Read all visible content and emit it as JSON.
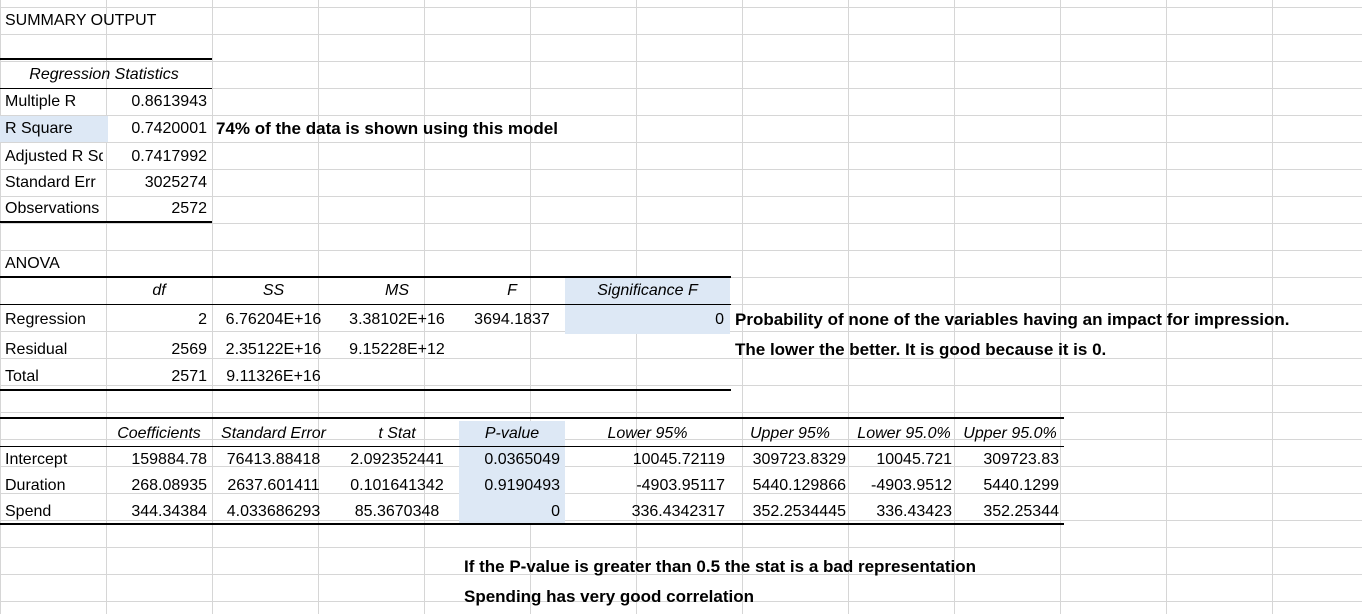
{
  "summary_title": "SUMMARY OUTPUT",
  "regression_statistics": {
    "header": "Regression Statistics",
    "rows": [
      {
        "label": "Multiple R",
        "value": "0.8613943"
      },
      {
        "label": "R Square",
        "value": "0.7420001"
      },
      {
        "label": "Adjusted R Sq",
        "value": "0.7417992"
      },
      {
        "label": "Standard Err",
        "value": "3025274"
      },
      {
        "label": "Observations",
        "value": "2572"
      }
    ],
    "r_square_note": "74% of the data is shown using this model"
  },
  "anova": {
    "title": "ANOVA",
    "headers": [
      "df",
      "SS",
      "MS",
      "F",
      "Significance F"
    ],
    "rows": [
      {
        "label": "Regression",
        "df": "2",
        "ss": "6.76204E+16",
        "ms": "3.38102E+16",
        "f": "3694.1837",
        "sig_f": "0"
      },
      {
        "label": "Residual",
        "df": "2569",
        "ss": "2.35122E+16",
        "ms": "9.15228E+12",
        "f": "",
        "sig_f": ""
      },
      {
        "label": "Total",
        "df": "2571",
        "ss": "9.11326E+16",
        "ms": "",
        "f": "",
        "sig_f": ""
      }
    ],
    "notes": [
      "Probability of none of the variables having an impact for impression.",
      "The lower the better. It is good because it is 0."
    ]
  },
  "coefficients": {
    "headers": [
      "Coefficients",
      "Standard Error",
      "t Stat",
      "P-value",
      "Lower 95%",
      "Upper 95%",
      "Lower 95.0%",
      "Upper 95.0%"
    ],
    "rows": [
      {
        "label": "Intercept",
        "values": [
          "159884.78",
          "76413.88418",
          "2.092352441",
          "0.0365049",
          "10045.72119",
          "309723.8329",
          "10045.721",
          "309723.83"
        ]
      },
      {
        "label": "Duration",
        "values": [
          "268.08935",
          "2637.601411",
          "0.101641342",
          "0.9190493",
          "-4903.95117",
          "5440.129866",
          "-4903.9512",
          "5440.1299"
        ]
      },
      {
        "label": "Spend",
        "values": [
          "344.34384",
          "4.033686293",
          "85.3670348",
          "0",
          "336.4342317",
          "352.2534445",
          "336.43423",
          "352.25344"
        ]
      }
    ],
    "notes": [
      "If the P-value is greater than 0.5 the stat is a bad representation",
      "Spending has very good correlation"
    ]
  }
}
